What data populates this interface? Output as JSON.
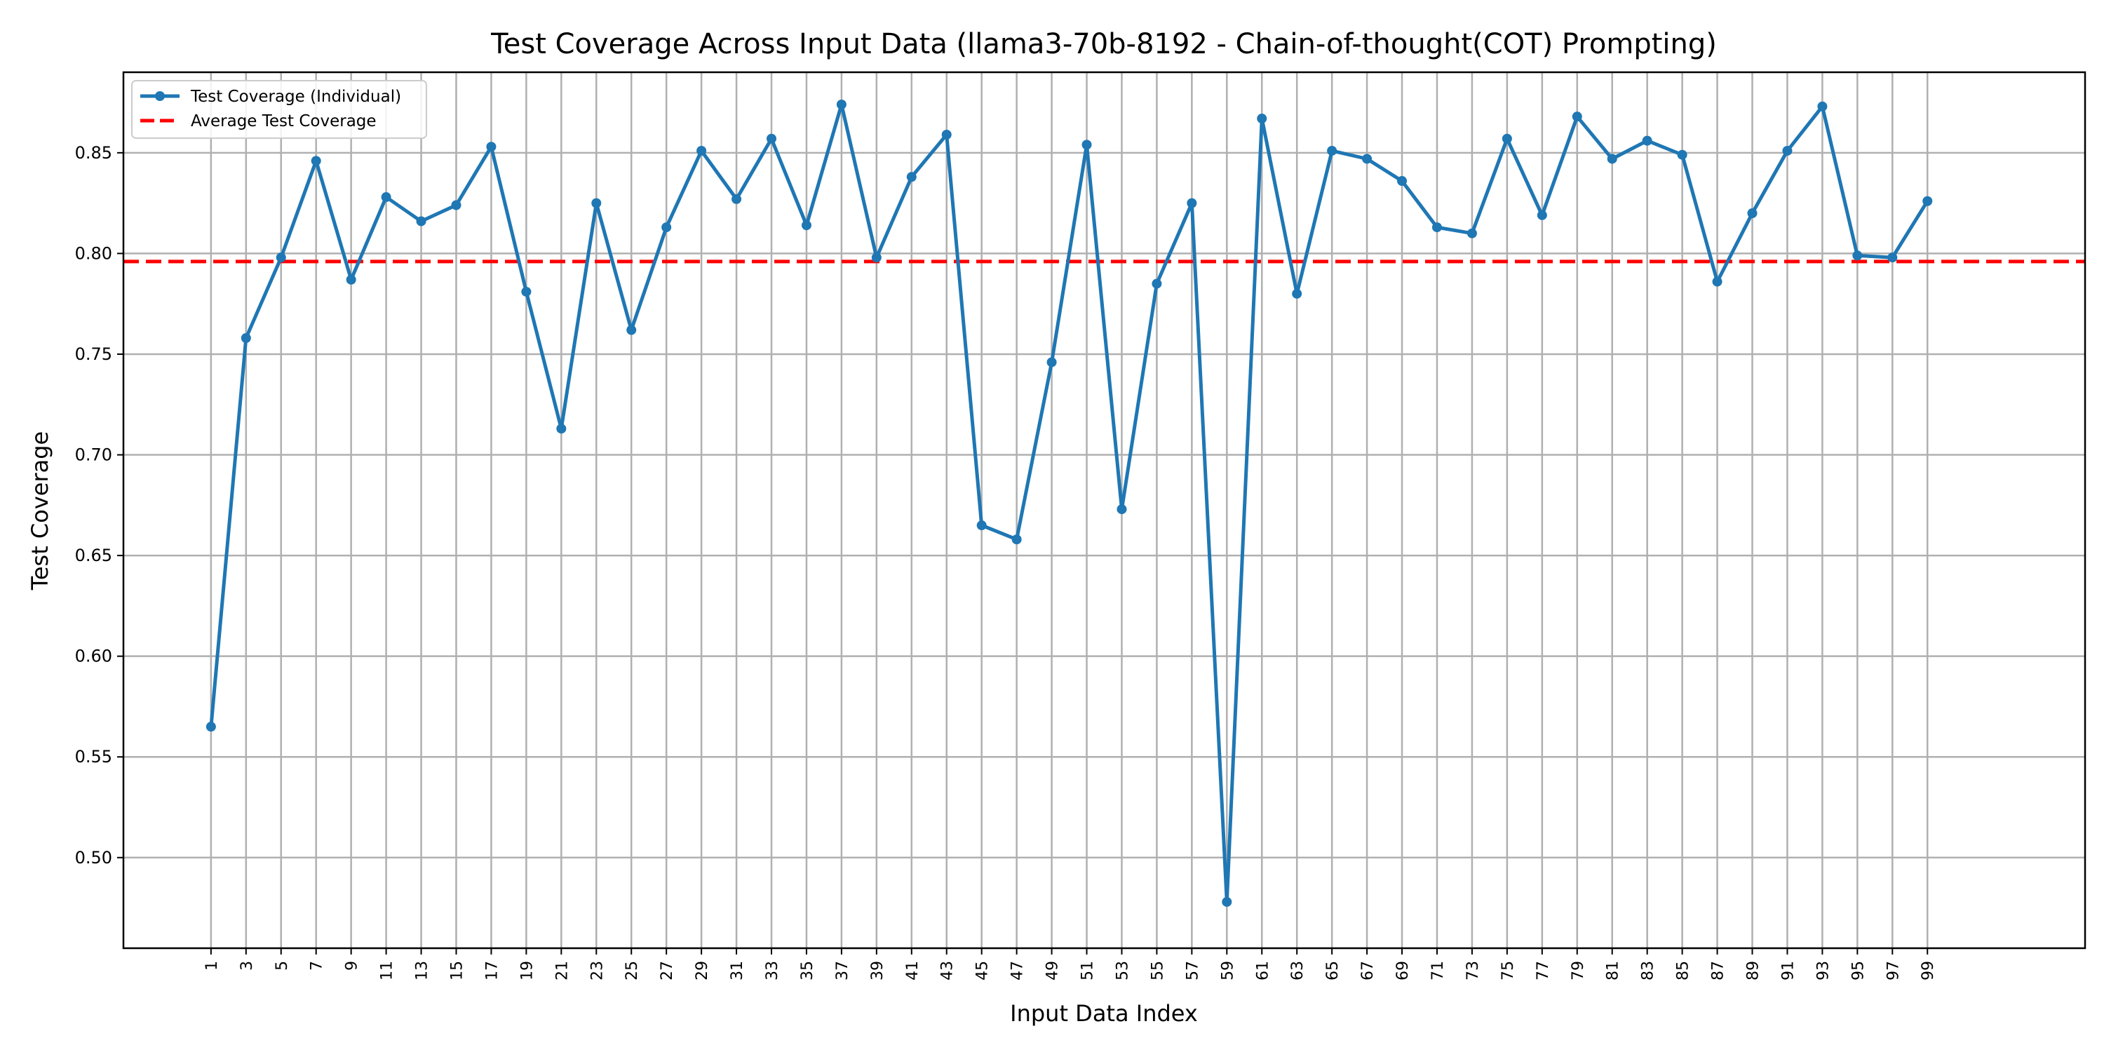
{
  "chart_data": {
    "type": "line",
    "title": "Test Coverage Across Input Data (llama3-70b-8192 - Chain-of-thought(COT) Prompting)",
    "xlabel": "Input Data Index",
    "ylabel": "Test Coverage",
    "ylim": [
      0.455,
      0.89
    ],
    "xlim": [
      -4,
      108
    ],
    "grid": true,
    "legend_position": "top-left",
    "x": [
      1,
      3,
      5,
      7,
      9,
      11,
      13,
      15,
      17,
      19,
      21,
      23,
      25,
      27,
      29,
      31,
      33,
      35,
      37,
      39,
      41,
      43,
      45,
      47,
      49,
      51,
      53,
      55,
      57,
      59,
      61,
      63,
      65,
      67,
      69,
      71,
      73,
      75,
      77,
      79,
      81,
      83,
      85,
      87,
      89,
      91,
      93,
      95,
      97,
      99
    ],
    "yticks": [
      0.5,
      0.55,
      0.6,
      0.65,
      0.7,
      0.75,
      0.8,
      0.85
    ],
    "ytick_labels": [
      "0.50",
      "0.55",
      "0.60",
      "0.65",
      "0.70",
      "0.75",
      "0.80",
      "0.85"
    ],
    "series": [
      {
        "name": "Test Coverage (Individual)",
        "color": "#1f77b4",
        "marker": "circle",
        "values": [
          0.565,
          0.758,
          0.798,
          0.846,
          0.787,
          0.828,
          0.816,
          0.824,
          0.853,
          0.781,
          0.713,
          0.825,
          0.762,
          0.813,
          0.851,
          0.827,
          0.857,
          0.814,
          0.874,
          0.798,
          0.838,
          0.859,
          0.665,
          0.658,
          0.746,
          0.854,
          0.673,
          0.785,
          0.825,
          0.478,
          0.867,
          0.78,
          0.851,
          0.847,
          0.836,
          0.813,
          0.81,
          0.857,
          0.819,
          0.868,
          0.847,
          0.856,
          0.849,
          0.786,
          0.82,
          0.851,
          0.873,
          0.799,
          0.798,
          0.826
        ]
      }
    ],
    "reference_lines": [
      {
        "name": "Average Test Coverage",
        "y": 0.796,
        "color": "#ff0000",
        "style": "dashed"
      }
    ]
  }
}
